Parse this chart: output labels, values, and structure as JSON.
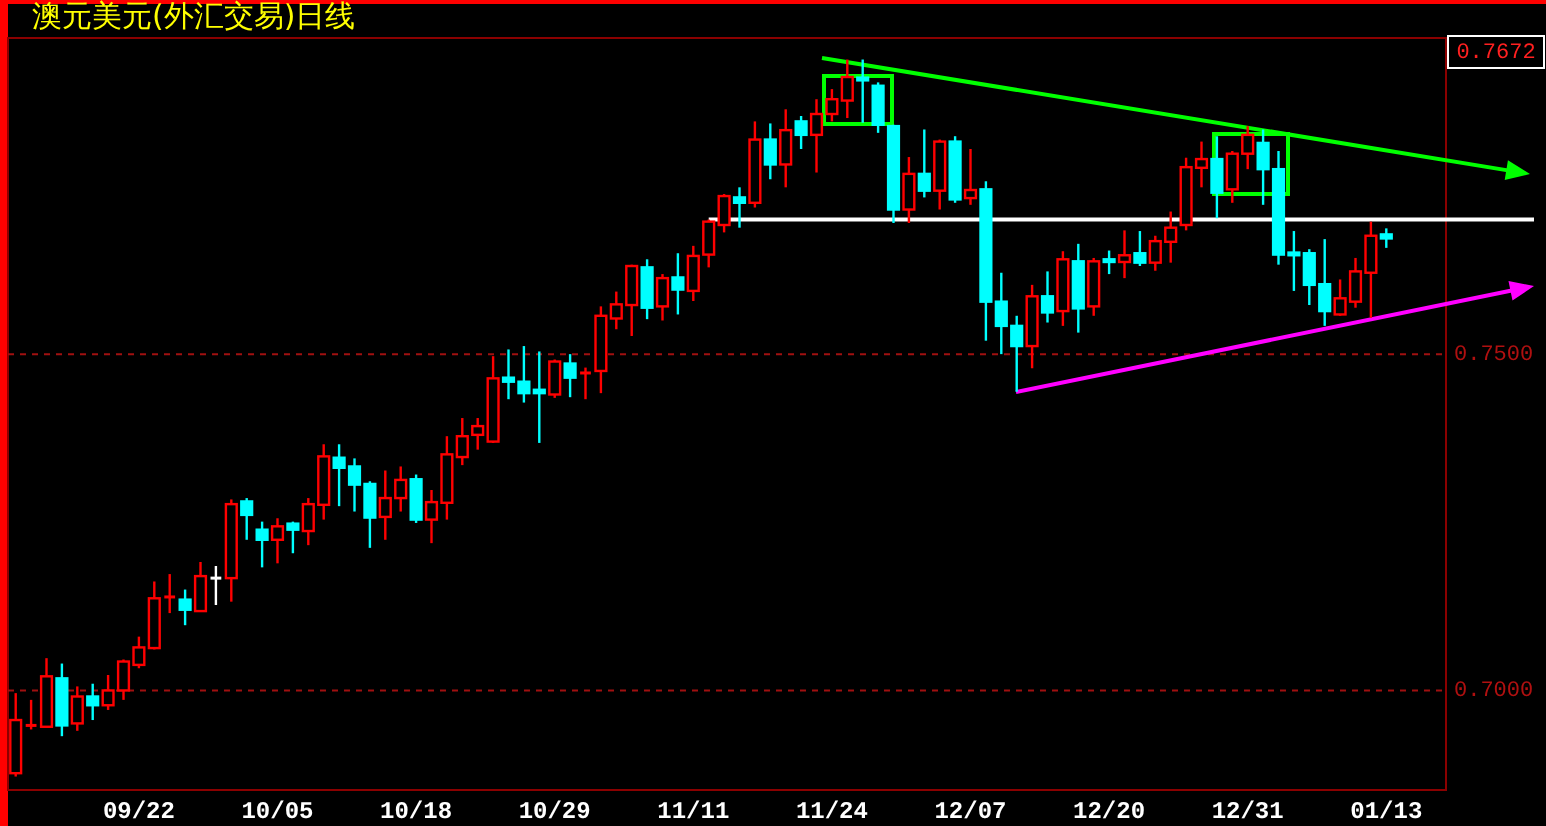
{
  "chart_data": {
    "type": "candlestick",
    "title": "澳元美元(外汇交易)日线",
    "categories": [
      null,
      null,
      null,
      null,
      null,
      null,
      null,
      null,
      "09/22",
      null,
      null,
      null,
      null,
      null,
      null,
      null,
      null,
      "10/05",
      null,
      null,
      null,
      null,
      null,
      null,
      null,
      null,
      "10/18",
      null,
      null,
      null,
      null,
      null,
      null,
      null,
      null,
      "10/29",
      null,
      null,
      null,
      null,
      null,
      null,
      null,
      null,
      "11/11",
      null,
      null,
      null,
      null,
      null,
      null,
      null,
      null,
      "11/24",
      null,
      null,
      null,
      null,
      null,
      null,
      null,
      null,
      "12/07",
      null,
      null,
      null,
      null,
      null,
      null,
      null,
      null,
      "12/20",
      null,
      null,
      null,
      null,
      null,
      null,
      null,
      null,
      "12/31",
      null,
      null,
      null,
      null,
      null,
      null,
      null,
      null,
      "01/13"
    ],
    "ohlc": [
      [
        0.6877,
        0.6996,
        0.6872,
        0.6956
      ],
      [
        0.6948,
        0.6986,
        0.6942,
        0.6948
      ],
      [
        0.6946,
        0.7048,
        0.6946,
        0.7021
      ],
      [
        0.7018,
        0.704,
        0.6932,
        0.6948
      ],
      [
        0.6951,
        0.7006,
        0.694,
        0.6991
      ],
      [
        0.6991,
        0.701,
        0.6956,
        0.6978
      ],
      [
        0.6978,
        0.7023,
        0.6971,
        0.7
      ],
      [
        0.7,
        0.7046,
        0.6986,
        0.7043
      ],
      [
        0.7038,
        0.708,
        0.7033,
        0.7064
      ],
      [
        0.7063,
        0.7162,
        0.7061,
        0.7137
      ],
      [
        0.7139,
        0.7173,
        0.7115,
        0.7139
      ],
      [
        0.7135,
        0.715,
        0.7097,
        0.712
      ],
      [
        0.7118,
        0.7191,
        0.7118,
        0.717
      ],
      [
        0.7167,
        0.7185,
        0.7127,
        0.7167
      ],
      [
        0.7167,
        0.7284,
        0.7132,
        0.7277
      ],
      [
        0.7281,
        0.7286,
        0.7224,
        0.7261
      ],
      [
        0.7239,
        0.7251,
        0.7183,
        0.7224
      ],
      [
        0.7224,
        0.7256,
        0.7189,
        0.7244
      ],
      [
        0.7248,
        0.7251,
        0.7204,
        0.7239
      ],
      [
        0.7237,
        0.7286,
        0.7216,
        0.7277
      ],
      [
        0.7276,
        0.7366,
        0.7254,
        0.7348
      ],
      [
        0.7346,
        0.7366,
        0.7274,
        0.7331
      ],
      [
        0.7333,
        0.7345,
        0.7266,
        0.7306
      ],
      [
        0.7307,
        0.7311,
        0.7212,
        0.7257
      ],
      [
        0.7258,
        0.7327,
        0.7224,
        0.7286
      ],
      [
        0.7286,
        0.7333,
        0.7266,
        0.7313
      ],
      [
        0.7314,
        0.7321,
        0.7249,
        0.7254
      ],
      [
        0.7254,
        0.7298,
        0.7219,
        0.728
      ],
      [
        0.7279,
        0.7378,
        0.7254,
        0.7351
      ],
      [
        0.7347,
        0.7405,
        0.7335,
        0.7378
      ],
      [
        0.738,
        0.7405,
        0.7358,
        0.7393
      ],
      [
        0.737,
        0.7497,
        0.7368,
        0.7464
      ],
      [
        0.7465,
        0.7507,
        0.7433,
        0.7459
      ],
      [
        0.7459,
        0.7512,
        0.7428,
        0.7442
      ],
      [
        0.7447,
        0.7504,
        0.7368,
        0.7442
      ],
      [
        0.744,
        0.7492,
        0.7435,
        0.7489
      ],
      [
        0.7486,
        0.75,
        0.7436,
        0.7465
      ],
      [
        0.7472,
        0.748,
        0.7433,
        0.7472
      ],
      [
        0.7475,
        0.7571,
        0.7442,
        0.7557
      ],
      [
        0.7553,
        0.7593,
        0.7537,
        0.7574
      ],
      [
        0.7573,
        0.7633,
        0.7527,
        0.7631
      ],
      [
        0.7629,
        0.7641,
        0.7552,
        0.7569
      ],
      [
        0.7571,
        0.7619,
        0.755,
        0.7613
      ],
      [
        0.7614,
        0.765,
        0.7559,
        0.7596
      ],
      [
        0.7594,
        0.7661,
        0.7579,
        0.7646
      ],
      [
        0.7648,
        0.77,
        0.7629,
        0.7697
      ],
      [
        0.7692,
        0.7738,
        0.7681,
        0.7735
      ],
      [
        0.7733,
        0.7748,
        0.7688,
        0.7725
      ],
      [
        0.7725,
        0.7846,
        0.7718,
        0.7819
      ],
      [
        0.7819,
        0.7843,
        0.776,
        0.7782
      ],
      [
        0.7782,
        0.7864,
        0.7748,
        0.7833
      ],
      [
        0.7846,
        0.7854,
        0.7805,
        0.7826
      ],
      [
        0.7826,
        0.7879,
        0.777,
        0.7857
      ],
      [
        0.7857,
        0.7894,
        0.7846,
        0.7879
      ],
      [
        0.7877,
        0.7938,
        0.7851,
        0.7912
      ],
      [
        0.7911,
        0.7938,
        0.7844,
        0.7907
      ],
      [
        0.7899,
        0.7904,
        0.7829,
        0.7841
      ],
      [
        0.7839,
        0.7841,
        0.7695,
        0.7715
      ],
      [
        0.7715,
        0.7793,
        0.7695,
        0.7768
      ],
      [
        0.7768,
        0.7834,
        0.7733,
        0.7743
      ],
      [
        0.7743,
        0.7819,
        0.7715,
        0.7816
      ],
      [
        0.7816,
        0.7824,
        0.7725,
        0.773
      ],
      [
        0.7732,
        0.7805,
        0.7722,
        0.7744
      ],
      [
        0.7745,
        0.7757,
        0.752,
        0.7578
      ],
      [
        0.7578,
        0.7621,
        0.75,
        0.7542
      ],
      [
        0.7542,
        0.7557,
        0.7444,
        0.7512
      ],
      [
        0.7512,
        0.7603,
        0.7479,
        0.7586
      ],
      [
        0.7586,
        0.7623,
        0.7547,
        0.7562
      ],
      [
        0.7564,
        0.7653,
        0.7542,
        0.7641
      ],
      [
        0.7638,
        0.7664,
        0.7532,
        0.7568
      ],
      [
        0.7571,
        0.7643,
        0.7557,
        0.7638
      ],
      [
        0.7641,
        0.7654,
        0.7619,
        0.7637
      ],
      [
        0.7637,
        0.7684,
        0.7613,
        0.7647
      ],
      [
        0.765,
        0.7683,
        0.7631,
        0.7636
      ],
      [
        0.7636,
        0.7676,
        0.7624,
        0.7668
      ],
      [
        0.7667,
        0.7712,
        0.7636,
        0.7688
      ],
      [
        0.7692,
        0.7792,
        0.7684,
        0.7778
      ],
      [
        0.7777,
        0.7816,
        0.7748,
        0.779
      ],
      [
        0.779,
        0.7824,
        0.7702,
        0.774
      ],
      [
        0.7745,
        0.7802,
        0.7725,
        0.7798
      ],
      [
        0.7798,
        0.7839,
        0.7775,
        0.7826
      ],
      [
        0.7814,
        0.7834,
        0.7722,
        0.7775
      ],
      [
        0.7775,
        0.7802,
        0.7633,
        0.7648
      ],
      [
        0.7651,
        0.7683,
        0.7594,
        0.7647
      ],
      [
        0.765,
        0.7656,
        0.7573,
        0.7603
      ],
      [
        0.7604,
        0.7671,
        0.7542,
        0.7564
      ],
      [
        0.7559,
        0.7611,
        0.7557,
        0.7583
      ],
      [
        0.7578,
        0.7643,
        0.7569,
        0.7623
      ],
      [
        0.7621,
        0.7697,
        0.7554,
        0.7676
      ],
      [
        0.7678,
        0.7687,
        0.7658,
        0.7672
      ]
    ],
    "colors": [
      "#ff0000",
      "#ff0000",
      "#ff0000",
      "#00ffff",
      "#ff0000",
      "#00ffff",
      "#ff0000",
      "#ff0000",
      "#ff0000",
      "#ff0000",
      "#ff0000",
      "#00ffff",
      "#ff0000",
      "#ffffff",
      "#ff0000",
      "#00ffff",
      "#00ffff",
      "#ff0000",
      "#00ffff",
      "#ff0000",
      "#ff0000",
      "#00ffff",
      "#00ffff",
      "#00ffff",
      "#ff0000",
      "#ff0000",
      "#00ffff",
      "#ff0000",
      "#ff0000",
      "#ff0000",
      "#ff0000",
      "#ff0000",
      "#00ffff",
      "#00ffff",
      "#00ffff",
      "#ff0000",
      "#00ffff",
      "#ff0000",
      "#ff0000",
      "#ff0000",
      "#ff0000",
      "#00ffff",
      "#ff0000",
      "#00ffff",
      "#ff0000",
      "#ff0000",
      "#ff0000",
      "#00ffff",
      "#ff0000",
      "#00ffff",
      "#ff0000",
      "#00ffff",
      "#ff0000",
      "#ff0000",
      "#ff0000",
      "#00ffff",
      "#00ffff",
      "#00ffff",
      "#ff0000",
      "#00ffff",
      "#ff0000",
      "#00ffff",
      "#ff0000",
      "#00ffff",
      "#00ffff",
      "#00ffff",
      "#ff0000",
      "#00ffff",
      "#ff0000",
      "#00ffff",
      "#ff0000",
      "#00ffff",
      "#ff0000",
      "#00ffff",
      "#ff0000",
      "#ff0000",
      "#ff0000",
      "#ff0000",
      "#00ffff",
      "#ff0000",
      "#ff0000",
      "#00ffff",
      "#00ffff",
      "#00ffff",
      "#00ffff",
      "#00ffff",
      "#ff0000",
      "#ff0000",
      "#ff0000",
      "#00ffff"
    ],
    "series": [
      {
        "type": "line",
        "color": "#ffffff",
        "values": [
          null,
          null,
          null,
          null,
          null,
          null,
          null,
          null,
          null,
          null,
          null,
          null,
          null,
          null,
          null,
          null,
          null,
          null,
          null,
          null,
          null,
          null,
          null,
          null,
          null,
          null,
          null,
          null,
          null,
          null,
          null,
          null,
          null,
          null,
          null,
          null,
          null,
          null,
          null,
          null,
          null,
          null,
          null,
          null,
          null,
          0.77,
          null,
          null,
          null,
          null,
          null,
          null,
          null,
          null,
          null,
          null,
          null,
          null,
          null,
          null,
          null,
          null,
          null,
          null,
          null,
          null,
          null,
          null,
          null,
          null,
          null,
          null,
          null,
          null,
          null,
          null,
          null,
          null,
          null,
          null,
          null,
          null,
          null,
          null,
          null,
          null,
          null,
          null,
          null,
          0.77
        ]
      }
    ],
    "ylim": [
      0.6852,
      0.797
    ],
    "yticks": [
      {
        "value": 0.75,
        "label": "0.7500"
      },
      {
        "value": 0.7,
        "label": "0.7000"
      }
    ],
    "grid": "y",
    "annotations": [
      "0.7672"
    ]
  }
}
